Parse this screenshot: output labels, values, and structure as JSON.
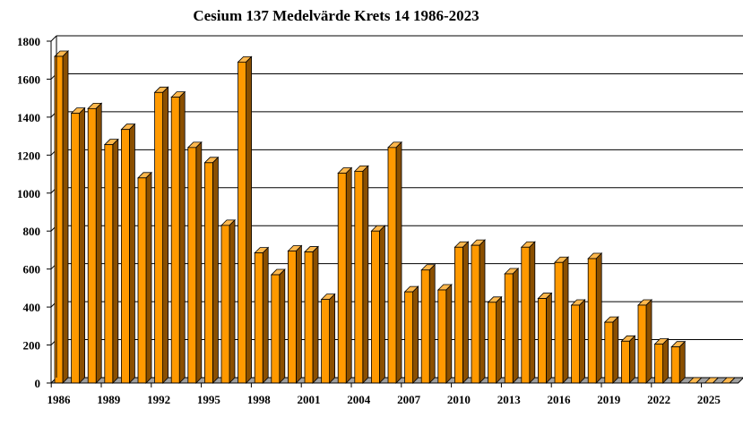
{
  "chart_data": {
    "type": "bar",
    "title": "Cesium 137 Medelvärde Krets 14 1986-2023",
    "xlabel": "",
    "ylabel": "",
    "ylim": [
      0,
      1800
    ],
    "yticks": [
      0,
      200,
      400,
      600,
      800,
      1000,
      1200,
      1400,
      1600,
      1800
    ],
    "xtick_labels": [
      "1986",
      "1989",
      "1992",
      "1995",
      "1998",
      "2001",
      "2004",
      "2007",
      "2010",
      "2013",
      "2016",
      "2019",
      "2022",
      "2025"
    ],
    "grid": true,
    "legend": "none",
    "colors": {
      "bar_front": "#FF9900",
      "bar_top": "#FFB84D",
      "bar_side": "#8A4F00",
      "floor": "#A0A0A0",
      "grid": "#000000"
    },
    "categories": [
      "1986",
      "1987",
      "1988",
      "1989",
      "1990",
      "1991",
      "1992",
      "1993",
      "1994",
      "1995",
      "1996",
      "1997",
      "1998",
      "1999",
      "2000",
      "2001",
      "2002",
      "2003",
      "2004",
      "2005",
      "2006",
      "2007",
      "2008",
      "2009",
      "2010",
      "2011",
      "2012",
      "2013",
      "2014",
      "2015",
      "2016",
      "2017",
      "2018",
      "2019",
      "2020",
      "2021",
      "2022",
      "2023",
      "2024",
      "2025",
      "2026"
    ],
    "values": [
      1720,
      1420,
      1445,
      1255,
      1335,
      1080,
      1530,
      1505,
      1240,
      1160,
      830,
      1690,
      685,
      570,
      695,
      690,
      440,
      1105,
      1115,
      800,
      1240,
      480,
      595,
      490,
      715,
      725,
      425,
      575,
      715,
      445,
      635,
      410,
      655,
      320,
      220,
      410,
      205,
      190,
      0,
      0,
      0
    ]
  }
}
